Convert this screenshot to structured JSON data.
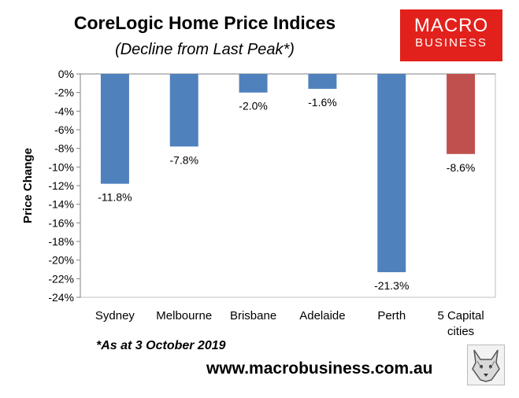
{
  "header": {
    "title": "CoreLogic Home Price Indices",
    "subtitle": "(Decline from Last Peak*)"
  },
  "logo": {
    "line1": "MACRO",
    "line2": "BUSINESS",
    "color": "#e2211c"
  },
  "footer": {
    "note": "*As at 3 October 2019",
    "url": "www.macrobusiness.com.au"
  },
  "colors": {
    "bar_blue": "#4f81bd",
    "bar_red": "#c0504d"
  },
  "chart_data": {
    "type": "bar",
    "title": "CoreLogic Home Price Indices",
    "subtitle": "(Decline from Last Peak*)",
    "xlabel": "",
    "ylabel": "Price Change",
    "categories": [
      "Sydney",
      "Melbourne",
      "Brisbane",
      "Adelaide",
      "Perth",
      "5 Capital cities"
    ],
    "category_lines": [
      [
        "Sydney"
      ],
      [
        "Melbourne"
      ],
      [
        "Brisbane"
      ],
      [
        "Adelaide"
      ],
      [
        "Perth"
      ],
      [
        "5 Capital",
        "cities"
      ]
    ],
    "values": [
      -11.8,
      -7.8,
      -2.0,
      -1.6,
      -21.3,
      -8.6
    ],
    "data_labels": [
      "-11.8%",
      "-7.8%",
      "-2.0%",
      "-1.6%",
      "-21.3%",
      "-8.6%"
    ],
    "bar_colors": [
      "#4f81bd",
      "#4f81bd",
      "#4f81bd",
      "#4f81bd",
      "#4f81bd",
      "#c0504d"
    ],
    "ylim": [
      -24,
      0
    ],
    "yticks": [
      0,
      -2,
      -4,
      -6,
      -8,
      -10,
      -12,
      -14,
      -16,
      -18,
      -20,
      -22,
      -24
    ],
    "ytick_labels": [
      "0%",
      "-2%",
      "-4%",
      "-6%",
      "-8%",
      "-10%",
      "-12%",
      "-14%",
      "-16%",
      "-18%",
      "-20%",
      "-22%",
      "-24%"
    ],
    "grid": false,
    "legend": "none"
  }
}
